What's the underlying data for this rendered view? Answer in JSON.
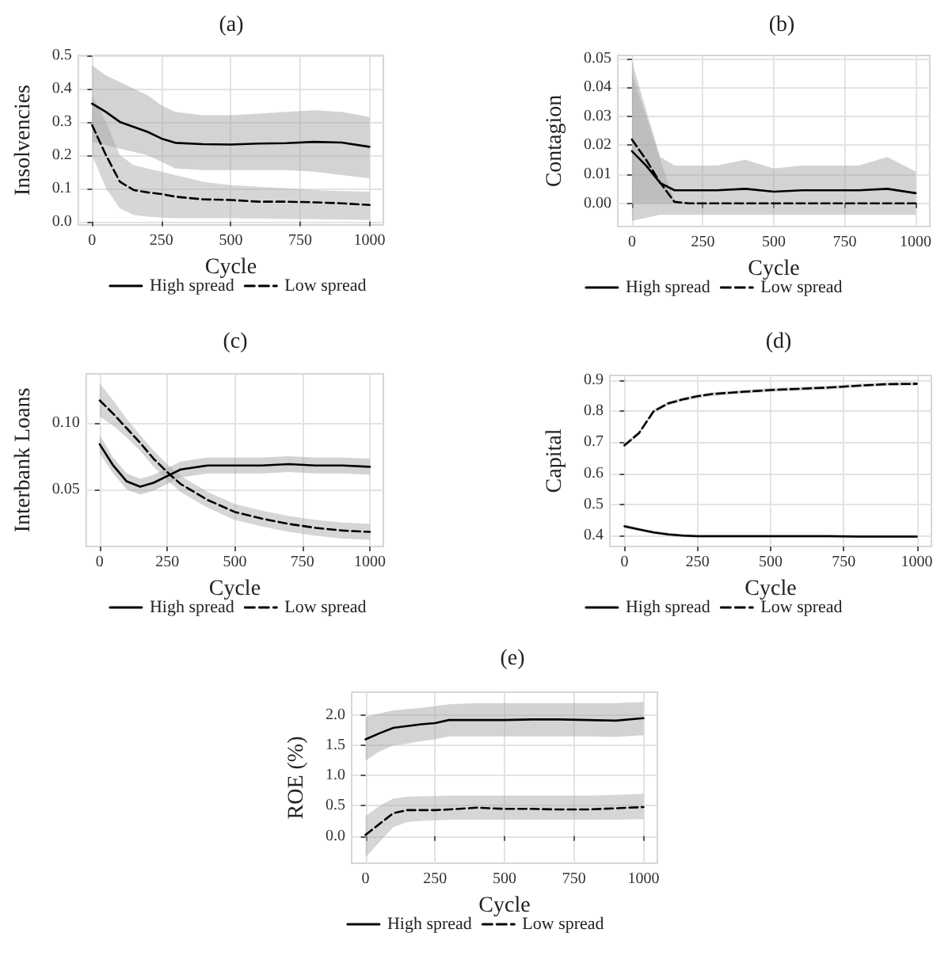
{
  "chart_data": [
    {
      "type": "line",
      "title": "(a)",
      "xlabel": "Cycle",
      "ylabel": "Insolvencies",
      "x": [
        0,
        50,
        100,
        150,
        200,
        250,
        300,
        400,
        500,
        600,
        700,
        800,
        900,
        1000
      ],
      "xlim": [
        -50,
        1050
      ],
      "xticks": [
        0,
        250,
        500,
        750,
        1000
      ],
      "ylim": [
        -0.01,
        0.5
      ],
      "yticks": [
        {
          "value": 0,
          "label": "0.0"
        },
        0.1,
        0.2,
        0.3,
        0.4,
        0.5
      ],
      "grid": true,
      "legend": "bottom",
      "series": [
        {
          "name": "High spread",
          "color": "#000000",
          "line_style": "solid",
          "values": [
            0.355,
            0.33,
            0.3,
            0.285,
            0.27,
            0.25,
            0.237,
            0.233,
            0.232,
            0.235,
            0.236,
            0.24,
            0.238,
            0.225
          ],
          "lower": [
            0.24,
            0.23,
            0.22,
            0.21,
            0.2,
            0.18,
            0.16,
            0.155,
            0.155,
            0.155,
            0.155,
            0.15,
            0.14,
            0.13
          ],
          "upper": [
            0.47,
            0.44,
            0.42,
            0.4,
            0.38,
            0.35,
            0.33,
            0.32,
            0.32,
            0.325,
            0.33,
            0.335,
            0.33,
            0.315
          ]
        },
        {
          "name": "Low spread",
          "color": "#000000",
          "line_style": "dashed",
          "values": [
            0.29,
            0.2,
            0.12,
            0.095,
            0.088,
            0.083,
            0.075,
            0.067,
            0.065,
            0.06,
            0.06,
            0.058,
            0.055,
            0.05
          ],
          "lower": [
            0.2,
            0.1,
            0.04,
            0.02,
            0.015,
            0.012,
            0.01,
            0.01,
            0.01,
            0.009,
            0.008,
            0.007,
            0.006,
            0.005
          ],
          "upper": [
            0.38,
            0.3,
            0.2,
            0.17,
            0.16,
            0.15,
            0.14,
            0.12,
            0.11,
            0.105,
            0.1,
            0.095,
            0.092,
            0.09
          ]
        }
      ]
    },
    {
      "type": "line",
      "title": "(b)",
      "xlabel": "Cycle",
      "ylabel": "Contagion",
      "x": [
        0,
        50,
        100,
        150,
        200,
        250,
        300,
        400,
        500,
        600,
        700,
        800,
        900,
        1000
      ],
      "xlim": [
        -50,
        1050
      ],
      "xticks": [
        0,
        250,
        500,
        750,
        1000
      ],
      "ylim": [
        -0.008,
        0.051
      ],
      "yticks": [
        {
          "value": 0,
          "label": "0.00"
        },
        0.01,
        0.02,
        0.03,
        0.04,
        0.05
      ],
      "grid": true,
      "legend": "bottom",
      "series": [
        {
          "name": "High spread",
          "color": "#000000",
          "line_style": "solid",
          "values": [
            0.018,
            0.013,
            0.007,
            0.0045,
            0.0045,
            0.0045,
            0.0045,
            0.005,
            0.004,
            0.0045,
            0.0045,
            0.0045,
            0.005,
            0.0035
          ],
          "lower": [
            -0.006,
            -0.005,
            -0.004,
            -0.004,
            -0.004,
            -0.004,
            -0.004,
            -0.004,
            -0.004,
            -0.004,
            -0.004,
            -0.004,
            -0.004,
            -0.004
          ],
          "upper": [
            0.049,
            0.032,
            0.016,
            0.013,
            0.013,
            0.013,
            0.013,
            0.015,
            0.012,
            0.013,
            0.013,
            0.013,
            0.016,
            0.011
          ]
        },
        {
          "name": "Low spread",
          "color": "#000000",
          "line_style": "dashed",
          "values": [
            0.022,
            0.015,
            0.007,
            0.0005,
            0,
            0,
            0,
            0,
            0,
            0,
            0,
            0,
            0,
            0
          ],
          "lower": [
            0,
            0,
            0,
            0,
            0,
            0,
            0,
            0,
            0,
            0,
            0,
            0,
            0,
            0
          ],
          "upper": [
            0.045,
            0.03,
            0.015,
            0.001,
            0,
            0,
            0,
            0,
            0,
            0,
            0,
            0,
            0,
            0
          ]
        }
      ]
    },
    {
      "type": "line",
      "title": "(c)",
      "xlabel": "Cycle",
      "ylabel": "Interbank Loans",
      "x": [
        0,
        50,
        100,
        150,
        200,
        250,
        300,
        400,
        500,
        600,
        700,
        800,
        900,
        1000
      ],
      "xlim": [
        -50,
        1050
      ],
      "xticks": [
        0,
        250,
        500,
        750,
        1000
      ],
      "ylim": [
        0.007,
        0.137
      ],
      "yticks": [
        0.05,
        {
          "value": 0.1,
          "label": "0.10"
        }
      ],
      "grid": true,
      "legend": "bottom",
      "series": [
        {
          "name": "High spread",
          "color": "#000000",
          "line_style": "solid",
          "values": [
            0.084,
            0.068,
            0.056,
            0.052,
            0.055,
            0.06,
            0.065,
            0.068,
            0.068,
            0.068,
            0.069,
            0.068,
            0.068,
            0.067
          ],
          "lower": [
            0.077,
            0.062,
            0.05,
            0.046,
            0.049,
            0.054,
            0.059,
            0.062,
            0.062,
            0.062,
            0.063,
            0.062,
            0.062,
            0.061
          ],
          "upper": [
            0.091,
            0.074,
            0.062,
            0.058,
            0.061,
            0.066,
            0.071,
            0.074,
            0.074,
            0.074,
            0.075,
            0.074,
            0.074,
            0.073
          ]
        },
        {
          "name": "Low spread",
          "color": "#000000",
          "line_style": "dashed",
          "values": [
            0.117,
            0.107,
            0.096,
            0.085,
            0.073,
            0.063,
            0.054,
            0.042,
            0.033,
            0.028,
            0.024,
            0.021,
            0.019,
            0.018
          ],
          "lower": [
            0.105,
            0.098,
            0.089,
            0.079,
            0.067,
            0.057,
            0.048,
            0.036,
            0.027,
            0.022,
            0.018,
            0.015,
            0.013,
            0.012
          ],
          "upper": [
            0.13,
            0.117,
            0.103,
            0.091,
            0.079,
            0.069,
            0.06,
            0.048,
            0.039,
            0.034,
            0.03,
            0.027,
            0.025,
            0.024
          ]
        }
      ]
    },
    {
      "type": "line",
      "title": "(d)",
      "xlabel": "Cycle",
      "ylabel": "Capital",
      "x": [
        0,
        50,
        100,
        150,
        200,
        250,
        300,
        400,
        500,
        600,
        700,
        800,
        900,
        1000
      ],
      "xlim": [
        -50,
        1050
      ],
      "xticks": [
        0,
        250,
        500,
        750,
        1000
      ],
      "ylim": [
        0.365,
        0.915
      ],
      "yticks": [
        0.4,
        0.5,
        0.6,
        0.7,
        0.8,
        0.9
      ],
      "grid": true,
      "legend": "bottom",
      "series": [
        {
          "name": "High spread",
          "color": "#000000",
          "line_style": "solid",
          "values": [
            0.43,
            0.42,
            0.41,
            0.404,
            0.4,
            0.398,
            0.398,
            0.398,
            0.398,
            0.398,
            0.398,
            0.397,
            0.397,
            0.397
          ],
          "lower": [
            0.424,
            0.415,
            0.405,
            0.399,
            0.395,
            0.393,
            0.393,
            0.393,
            0.393,
            0.393,
            0.393,
            0.392,
            0.392,
            0.392
          ],
          "upper": [
            0.436,
            0.425,
            0.415,
            0.409,
            0.405,
            0.403,
            0.403,
            0.403,
            0.403,
            0.403,
            0.403,
            0.402,
            0.402,
            0.402
          ]
        },
        {
          "name": "Low spread",
          "color": "#000000",
          "line_style": "dashed",
          "values": [
            0.69,
            0.73,
            0.8,
            0.825,
            0.838,
            0.848,
            0.855,
            0.862,
            0.868,
            0.872,
            0.876,
            0.882,
            0.887,
            0.888
          ],
          "lower": [
            0.683,
            0.724,
            0.794,
            0.819,
            0.832,
            0.842,
            0.849,
            0.856,
            0.862,
            0.866,
            0.87,
            0.876,
            0.881,
            0.882
          ],
          "upper": [
            0.697,
            0.736,
            0.806,
            0.831,
            0.844,
            0.854,
            0.861,
            0.868,
            0.874,
            0.878,
            0.882,
            0.888,
            0.893,
            0.894
          ]
        }
      ]
    },
    {
      "type": "line",
      "title": "(e)",
      "xlabel": "Cycle",
      "ylabel": "ROE (%)",
      "x": [
        0,
        50,
        100,
        150,
        200,
        250,
        300,
        400,
        500,
        600,
        700,
        800,
        900,
        1000
      ],
      "xlim": [
        -50,
        1050
      ],
      "xticks": [
        0,
        250,
        500,
        750,
        1000
      ],
      "ylim": [
        -0.45,
        2.38
      ],
      "yticks": [
        {
          "value": 0,
          "label": "0.0"
        },
        0.5,
        {
          "value": 1,
          "label": "1.0"
        },
        1.5,
        {
          "value": 2,
          "label": "2.0"
        }
      ],
      "grid": true,
      "legend": "bottom",
      "series": [
        {
          "name": "High spread",
          "color": "#000000",
          "line_style": "solid",
          "values": [
            1.6,
            1.7,
            1.79,
            1.82,
            1.85,
            1.87,
            1.92,
            1.92,
            1.92,
            1.93,
            1.93,
            1.92,
            1.91,
            1.95
          ],
          "lower": [
            1.25,
            1.4,
            1.5,
            1.53,
            1.57,
            1.6,
            1.65,
            1.65,
            1.65,
            1.65,
            1.65,
            1.65,
            1.64,
            1.67
          ],
          "upper": [
            1.97,
            2.03,
            2.08,
            2.1,
            2.12,
            2.15,
            2.18,
            2.2,
            2.2,
            2.2,
            2.2,
            2.2,
            2.2,
            2.22
          ]
        },
        {
          "name": "Low spread",
          "color": "#000000",
          "line_style": "dashed",
          "values": [
            0.02,
            0.2,
            0.38,
            0.43,
            0.43,
            0.43,
            0.44,
            0.47,
            0.45,
            0.45,
            0.44,
            0.44,
            0.46,
            0.48
          ],
          "lower": [
            -0.35,
            -0.1,
            0.15,
            0.23,
            0.25,
            0.26,
            0.27,
            0.27,
            0.27,
            0.27,
            0.27,
            0.27,
            0.27,
            0.28
          ],
          "upper": [
            0.33,
            0.5,
            0.62,
            0.65,
            0.66,
            0.66,
            0.67,
            0.67,
            0.67,
            0.67,
            0.67,
            0.67,
            0.68,
            0.7
          ]
        }
      ]
    }
  ]
}
